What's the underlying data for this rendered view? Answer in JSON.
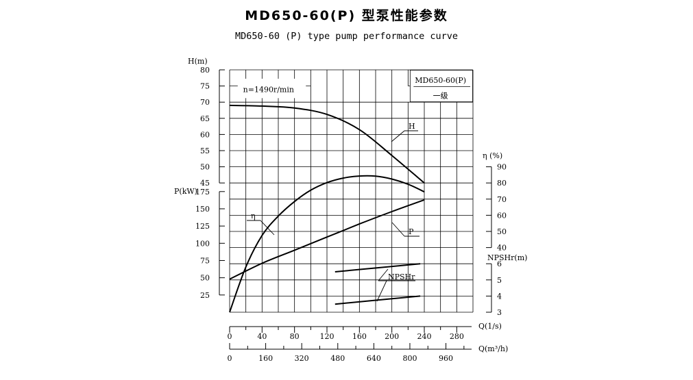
{
  "title_cn": "MD650-60(P) 型泵性能参数",
  "title_en": "MD650-60 (P) type pump performance curve",
  "chart_data": {
    "type": "line",
    "speed_label": "n=1490r/min",
    "model_box": {
      "model": "MD650-60(P)",
      "stage": "一级"
    },
    "x_axes": [
      {
        "label": "Q(1/s)",
        "ticks": [
          0,
          40,
          80,
          120,
          160,
          200,
          240,
          280
        ],
        "range": [
          0,
          300
        ]
      },
      {
        "label": "Q(m³/h)",
        "ticks": [
          0,
          160,
          320,
          480,
          640,
          800,
          960
        ],
        "range": [
          0,
          1080
        ]
      }
    ],
    "y_axes": {
      "head": {
        "label": "H(m)",
        "ticks": [
          45,
          50,
          55,
          60,
          65,
          70,
          75,
          80
        ],
        "range": [
          45,
          80
        ]
      },
      "power": {
        "label": "P(kW)",
        "ticks": [
          25,
          50,
          75,
          100,
          125,
          150,
          175
        ],
        "range": [
          0,
          187.5
        ]
      },
      "efficiency": {
        "label": "η (%)",
        "ticks": [
          40,
          50,
          60,
          70,
          80,
          90
        ],
        "range": [
          40,
          90
        ]
      },
      "npsh": {
        "label": "NPSHr(m)",
        "ticks": [
          3,
          4,
          5,
          6
        ],
        "range": [
          3,
          6
        ]
      }
    },
    "series": [
      {
        "name": "H",
        "axis": "head",
        "x": [
          0,
          40,
          80,
          120,
          160,
          200,
          240
        ],
        "y": [
          69,
          68.8,
          68.2,
          66.2,
          61.5,
          53.5,
          45
        ]
      },
      {
        "name": "η",
        "axis": "efficiency",
        "x": [
          0,
          20,
          40,
          60,
          80,
          100,
          120,
          140,
          160,
          180,
          200,
          220,
          240
        ],
        "y": [
          0,
          28,
          47.5,
          59.5,
          68.5,
          75.5,
          80.2,
          83,
          84.3,
          84.2,
          82.4,
          79.2,
          74.5
        ]
      },
      {
        "name": "P",
        "axis": "power",
        "x": [
          0,
          40,
          80,
          120,
          160,
          200,
          240
        ],
        "y": [
          48,
          71,
          90,
          109,
          128,
          146,
          163
        ]
      },
      {
        "name": "NPSHr",
        "axis": "npsh",
        "x": [
          130,
          235
        ],
        "y": [
          5.5,
          6
        ]
      },
      {
        "name": "NPSHr",
        "axis": "npsh",
        "x": [
          130,
          235
        ],
        "y": [
          3.5,
          4
        ]
      }
    ]
  }
}
